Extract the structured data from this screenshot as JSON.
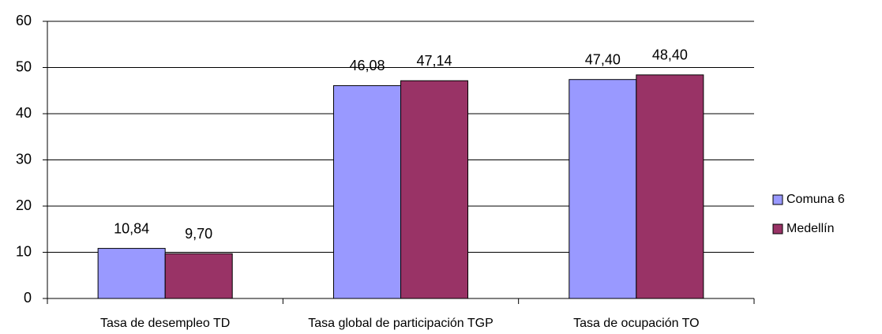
{
  "chart_data": {
    "type": "bar",
    "categories": [
      "Tasa de desempleo TD",
      "Tasa global de participación TGP",
      "Tasa de ocupación TO"
    ],
    "series": [
      {
        "name": "Comuna 6",
        "color": "#9999ff",
        "values": [
          10.84,
          46.08,
          47.4
        ],
        "value_labels": [
          "10,84",
          "46,08",
          "47,40"
        ]
      },
      {
        "name": "Medellín",
        "color": "#993366",
        "values": [
          9.7,
          47.14,
          48.4
        ],
        "value_labels": [
          "9,70",
          "47,14",
          "48,40"
        ]
      }
    ],
    "ylim": [
      0,
      60
    ],
    "yticks": [
      0,
      10,
      20,
      30,
      40,
      50,
      60
    ],
    "grid": true,
    "legend": "right"
  }
}
